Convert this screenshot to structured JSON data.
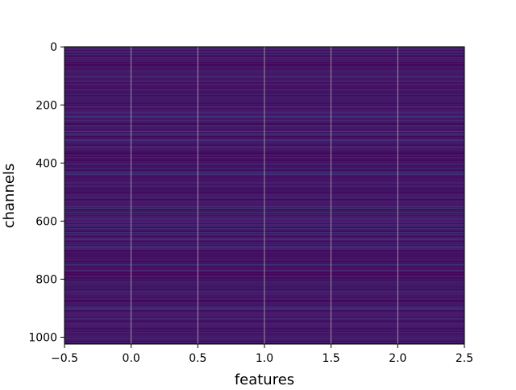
{
  "chart_data": {
    "type": "heatmap",
    "title": "",
    "xlabel": "features",
    "ylabel": "channels",
    "x_ticks": [
      "−0.5",
      "0.0",
      "0.5",
      "1.0",
      "1.5",
      "2.0",
      "2.5"
    ],
    "x_tick_values": [
      -0.5,
      0.0,
      0.5,
      1.0,
      1.5,
      2.0,
      2.5
    ],
    "y_ticks": [
      "0",
      "200",
      "400",
      "600",
      "800",
      "1000"
    ],
    "y_tick_values": [
      0,
      200,
      400,
      600,
      800,
      1000
    ],
    "xlim": [
      -0.5,
      2.5
    ],
    "ylim": [
      1023.5,
      -0.5
    ],
    "y_inverted": true,
    "grid": true,
    "grid_color": "#b0b0b0",
    "colormap": "viridis",
    "n_rows": 1024,
    "n_cols": 3,
    "rows_constant_across_features": true,
    "highlight_rows": [
      {
        "channel": 18,
        "level": 0.62
      },
      {
        "channel": 104,
        "level": 0.58
      },
      {
        "channel": 159,
        "level": 0.45
      },
      {
        "channel": 240,
        "level": 0.42
      },
      {
        "channel": 272,
        "level": 0.55
      },
      {
        "channel": 292,
        "level": 0.7
      },
      {
        "channel": 300,
        "level": 0.6
      },
      {
        "channel": 347,
        "level": 0.5
      },
      {
        "channel": 433,
        "level": 0.45
      },
      {
        "channel": 478,
        "level": 0.42
      },
      {
        "channel": 520,
        "level": 0.55
      },
      {
        "channel": 556,
        "level": 0.62
      },
      {
        "channel": 570,
        "level": 0.72
      },
      {
        "channel": 640,
        "level": 0.45
      },
      {
        "channel": 663,
        "level": 0.5
      },
      {
        "channel": 750,
        "level": 0.55
      },
      {
        "channel": 818,
        "level": 0.5
      },
      {
        "channel": 885,
        "level": 0.42
      },
      {
        "channel": 954,
        "level": 0.45
      },
      {
        "channel": 1003,
        "level": 0.5
      }
    ]
  }
}
